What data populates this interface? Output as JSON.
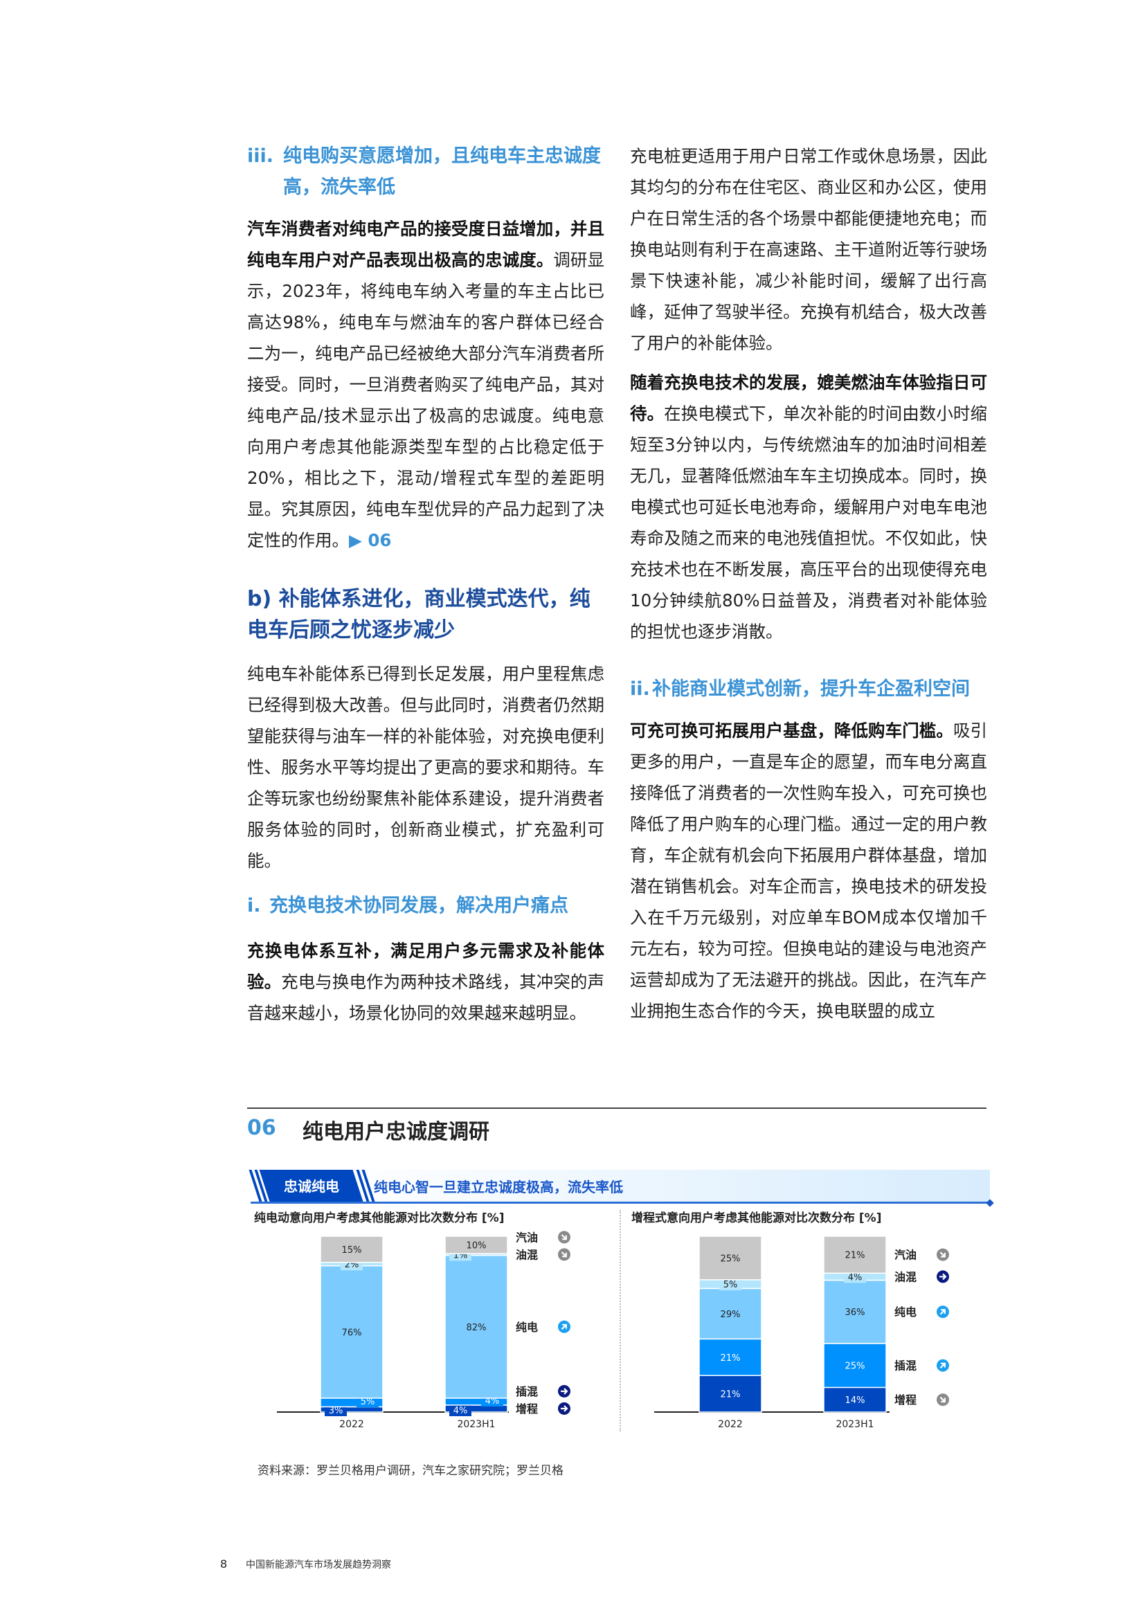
{
  "left_column": {
    "heading_iii": {
      "num": "iii.",
      "text": "纯电购买意愿增加，且纯电车主忠诚度高，流失率低"
    },
    "p1": {
      "lead": "汽车消费者对纯电产品的接受度日益增加，并且纯电车用户对产品表现出极高的忠诚度。",
      "body": "调研显示，2023年，将纯电车纳入考量的车主占比已高达98%，纯电车与燃油车的客户群体已经合二为一，纯电产品已经被绝大部分汽车消费者所接受。同时，一旦消费者购买了纯电产品，其对纯电产品/技术显示出了极高的忠诚度。纯电意向用户考虑其他能源类型车型的占比稳定低于20%，相比之下，混动/增程式车型的差距明显。究其原因，纯电车型优异的产品力起到了决定性的作用。",
      "ref": "▶ 06"
    },
    "heading_b": "b) 补能体系进化，商业模式迭代，纯电车后顾之忧逐步减少",
    "p2": "纯电车补能体系已得到长足发展，用户里程焦虑已经得到极大改善。但与此同时，消费者仍然期望能获得与油车一样的补能体验，对充换电便利性、服务水平等均提出了更高的要求和期待。车企等玩家也纷纷聚焦补能体系建设，提升消费者服务体验的同时，创新商业模式，扩充盈利可能。",
    "heading_i": {
      "num": "i.",
      "text": "充换电技术协同发展，解决用户痛点"
    },
    "p3": {
      "lead": "充换电体系互补，满足用户多元需求及补能体验。",
      "body": "充电与换电作为两种技术路线，其冲突的声音越来越小，场景化协同的效果越来越明显。"
    }
  },
  "right_column": {
    "p1": "充电桩更适用于用户日常工作或休息场景，因此其均匀的分布在住宅区、商业区和办公区，使用户在日常生活的各个场景中都能便捷地充电；而换电站则有利于在高速路、主干道附近等行驶场景下快速补能，减少补能时间，缓解了出行高峰，延伸了驾驶半径。充换有机结合，极大改善了用户的补能体验。",
    "p2": {
      "lead": "随着充换电技术的发展，媲美燃油车体验指日可待。",
      "body": "在换电模式下，单次补能的时间由数小时缩短至3分钟以内，与传统燃油车的加油时间相差无几，显著降低燃油车车主切换成本。同时，换电模式也可延长电池寿命，缓解用户对电车电池寿命及随之而来的电池残值担忧。不仅如此，快充技术也在不断发展，高压平台的出现使得充电10分钟续航80%日益普及，消费者对补能体验的担忧也逐步消散。"
    },
    "heading_ii": {
      "num": "ii.",
      "text": "补能商业模式创新，提升车企盈利空间"
    },
    "p3": {
      "lead": "可充可换可拓展用户基盘，降低购车门槛。",
      "body": "吸引更多的用户，一直是车企的愿望，而车电分离直接降低了消费者的一次性购车投入，可充可换也降低了用户购车的心理门槛。通过一定的用户教育，车企就有机会向下拓展用户群体基盘，增加潜在销售机会。对车企而言，换电技术的研发投入在千万元级别，对应单车BOM成本仅增加千元左右，较为可控。但换电站的建设与电池资产运营却成为了无法避开的挑战。因此，在汽车产业拥抱生态合作的今天，换电联盟的成立"
    }
  },
  "figure": {
    "number": "06",
    "title": "纯电用户忠诚度调研",
    "banner_tag": "忠诚纯电",
    "banner_text": "纯电心智一旦建立忠诚度极高，流失率低",
    "source": "资料来源：罗兰贝格用户调研，汽车之家研究院；罗兰贝格"
  },
  "colors": {
    "汽油": "#c8c8c8",
    "油混": "#b3e5fc",
    "纯电": "#7ccbff",
    "插混": "#0091ff",
    "增程": "#0047c0"
  },
  "chart_data": [
    {
      "type": "bar",
      "stacked": true,
      "title": "纯电动意向用户考虑其他能源对比次数分布 [%]",
      "categories": [
        "2022",
        "2023H1"
      ],
      "series": [
        {
          "name": "增程",
          "values": [
            3,
            4
          ],
          "icon": "arrow-right-navy-icon"
        },
        {
          "name": "插混",
          "values": [
            5,
            4
          ],
          "icon": "arrow-right-navy-icon"
        },
        {
          "name": "纯电",
          "values": [
            76,
            82
          ],
          "icon": "arrow-up-right-blue-icon"
        },
        {
          "name": "油混",
          "values": [
            2,
            1
          ],
          "icon": "arrow-down-right-gray-icon"
        },
        {
          "name": "汽油",
          "values": [
            15,
            10
          ],
          "icon": "arrow-down-right-gray-icon"
        }
      ],
      "unit": "%"
    },
    {
      "type": "bar",
      "stacked": true,
      "title": "增程式意向用户考虑其他能源对比次数分布 [%]",
      "categories": [
        "2022",
        "2023H1"
      ],
      "series": [
        {
          "name": "增程",
          "values": [
            21,
            14
          ],
          "icon": "arrow-down-right-gray-icon"
        },
        {
          "name": "插混",
          "values": [
            21,
            25
          ],
          "icon": "arrow-up-right-blue-icon"
        },
        {
          "name": "纯电",
          "values": [
            29,
            36
          ],
          "icon": "arrow-up-right-blue-icon"
        },
        {
          "name": "油混",
          "values": [
            5,
            4
          ],
          "icon": "arrow-right-navy-icon"
        },
        {
          "name": "汽油",
          "values": [
            25,
            21
          ],
          "icon": "arrow-down-right-gray-icon"
        }
      ],
      "unit": "%"
    }
  ],
  "footer": {
    "page": "8",
    "title": "中国新能源汽车市场发展趋势洞察"
  }
}
